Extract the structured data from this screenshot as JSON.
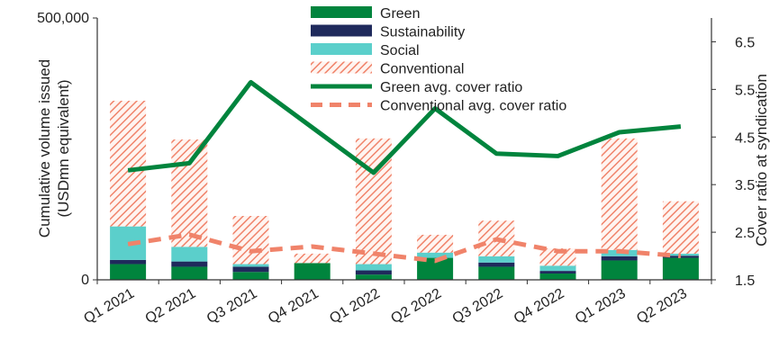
{
  "chart_data": {
    "type": "bar",
    "categories": [
      "Q1 2021",
      "Q2 2021",
      "Q3 2021",
      "Q4 2021",
      "Q1 2022",
      "Q2 2022",
      "Q3 2022",
      "Q4 2022",
      "Q1 2023",
      "Q2 2023"
    ],
    "left_axis": {
      "label": "Cumulative volume issued (USDmn equivalent)",
      "label_lines": [
        "Cumulative volume issued",
        "(USDmn equivalent)"
      ],
      "ylim": [
        0,
        500000
      ],
      "tick_labels": [
        {
          "value": 0,
          "text": "0"
        },
        {
          "value": 500000,
          "text": "500,000"
        }
      ]
    },
    "right_axis": {
      "label": "Cover ratio at syndication",
      "ylim": [
        1.5,
        7.0
      ],
      "ticks": [
        1.5,
        2.5,
        3.5,
        4.5,
        5.5,
        6.5
      ],
      "tick_labels": [
        "1.5",
        "2.5",
        "3.5",
        "4.5",
        "5.5",
        "6.5"
      ]
    },
    "series": [
      {
        "name": "Green",
        "kind": "bar",
        "color": "#00843D",
        "values": [
          30000,
          25000,
          15000,
          32000,
          10000,
          42000,
          25000,
          12000,
          37000,
          42000
        ]
      },
      {
        "name": "Sustainability",
        "kind": "bar",
        "color": "#1F2A5C",
        "values": [
          8000,
          10000,
          10000,
          0,
          8000,
          0,
          8000,
          5000,
          8000,
          4000
        ]
      },
      {
        "name": "Social",
        "kind": "bar",
        "color": "#5BCFCB",
        "values": [
          64000,
          28000,
          5000,
          0,
          12000,
          10000,
          12000,
          10000,
          12000,
          4000
        ]
      },
      {
        "name": "Conventional",
        "kind": "bar",
        "pattern": "hatched",
        "color": "#F0836A",
        "values": [
          240000,
          205000,
          92000,
          18000,
          240000,
          34000,
          68000,
          33000,
          213000,
          100000
        ]
      },
      {
        "name": "Green avg. cover ratio",
        "kind": "line",
        "axis": "right",
        "color": "#00843D",
        "values": [
          3.8,
          3.95,
          5.65,
          4.7,
          3.75,
          5.1,
          4.15,
          4.1,
          4.6,
          4.72
        ]
      },
      {
        "name": "Conventional avg. cover ratio",
        "kind": "line",
        "axis": "right",
        "dashed": true,
        "color": "#F0836A",
        "values": [
          2.25,
          2.45,
          2.1,
          2.2,
          2.05,
          1.9,
          2.35,
          2.1,
          2.1,
          2.0
        ]
      }
    ],
    "legend_position": "top-center",
    "grid": false
  }
}
